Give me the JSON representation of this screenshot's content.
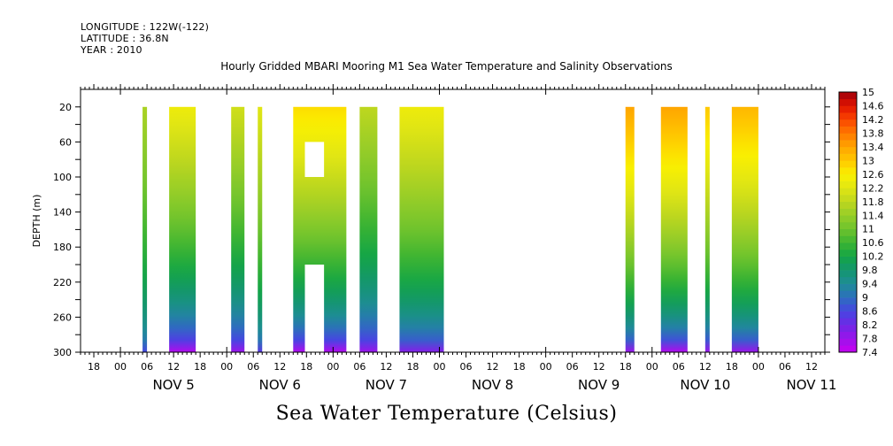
{
  "header": {
    "longitude": "LONGITUDE : 122W(-122)",
    "latitude": "LATITUDE : 36.8N",
    "year": "YEAR : 2010"
  },
  "chart_data": {
    "type": "heatmap",
    "title": "Hourly Gridded MBARI Mooring M1 Sea Water Temperature and Salinity Observations",
    "caption": "Sea Water Temperature (Celsius)",
    "xlabel": "",
    "ylabel": "DEPTH (m)",
    "y_reversed": true,
    "ylim": [
      300,
      0
    ],
    "xlim_hours_from_nov5_00": [
      -9,
      159
    ],
    "x_hour_ticks": [
      "00",
      "06",
      "12",
      "18"
    ],
    "x_day_labels": [
      "NOV 5",
      "NOV 6",
      "NOV 7",
      "NOV 8",
      "NOV 9",
      "NOV 10",
      "NOV 11"
    ],
    "y_tick_labels": [
      "20",
      "60",
      "100",
      "140",
      "180",
      "220",
      "260",
      "300"
    ],
    "colorbar": {
      "min": 7.4,
      "max": 15,
      "step": 0.2,
      "labels": [
        "15",
        "14.6",
        "14.2",
        "13.8",
        "13.4",
        "13",
        "12.6",
        "12.2",
        "11.8",
        "11.4",
        "11",
        "10.6",
        "10.2",
        "9.8",
        "9.4",
        "9",
        "8.6",
        "8.2",
        "7.8",
        "7.4"
      ]
    },
    "data_segments": [
      {
        "start": "NOV 5 05:00",
        "end": "NOV 5 06:00",
        "top_temp": 11.6,
        "bottom_temp": 8.6
      },
      {
        "start": "NOV 5 11:00",
        "end": "NOV 5 17:00",
        "top_temp": 12.4,
        "bottom_temp": 7.6
      },
      {
        "start": "NOV 6 01:00",
        "end": "NOV 6 04:00",
        "top_temp": 12.0,
        "bottom_temp": 7.8
      },
      {
        "start": "NOV 6 07:00",
        "end": "NOV 6 08:00",
        "top_temp": 12.2,
        "bottom_temp": 8.4
      },
      {
        "start": "NOV 6 15:00",
        "end": "NOV 7 03:00",
        "top_temp": 12.8,
        "bottom_temp": 7.6,
        "gaps_depth_m": [
          [
            60,
            100
          ],
          [
            200,
            300
          ]
        ]
      },
      {
        "start": "NOV 7 06:00",
        "end": "NOV 7 10:00",
        "top_temp": 11.8,
        "bottom_temp": 7.8
      },
      {
        "start": "NOV 7 15:00",
        "end": "NOV 8 01:00",
        "top_temp": 12.4,
        "bottom_temp": 8.0
      },
      {
        "start": "NOV 9 18:00",
        "end": "NOV 9 20:00",
        "top_temp": 13.4,
        "bottom_temp": 7.8
      },
      {
        "start": "NOV 10 02:00",
        "end": "NOV 10 08:00",
        "top_temp": 13.4,
        "bottom_temp": 7.6
      },
      {
        "start": "NOV 10 12:00",
        "end": "NOV 10 13:00",
        "top_temp": 13.0,
        "bottom_temp": 7.8
      },
      {
        "start": "NOV 10 18:00",
        "end": "NOV 11 00:00",
        "top_temp": 13.2,
        "bottom_temp": 7.8
      }
    ]
  }
}
